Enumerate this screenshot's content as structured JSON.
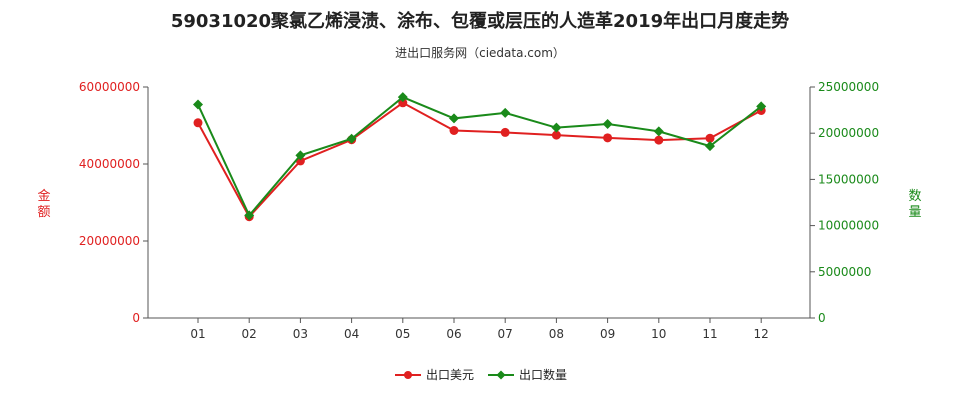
{
  "chart_data": {
    "type": "line",
    "title": "59031020聚氯乙烯浸渍、涂布、包覆或层压的人造革2019年出口月度走势",
    "subtitle": "进出口服务网（ciedata.com）",
    "xlabel": "",
    "categories": [
      "01",
      "02",
      "03",
      "04",
      "05",
      "06",
      "07",
      "08",
      "09",
      "10",
      "11",
      "12"
    ],
    "y_left": {
      "label": "金额",
      "lim": [
        0,
        60000000
      ],
      "ticks": [
        "0",
        "20000000",
        "40000000",
        "60000000"
      ]
    },
    "y_right": {
      "label": "数量",
      "lim": [
        0,
        25000000
      ],
      "ticks": [
        "0",
        "5000000",
        "10000000",
        "15000000",
        "20000000",
        "25000000"
      ]
    },
    "series": [
      {
        "name": "出口美元",
        "axis": "left",
        "color": "#e02020",
        "values": [
          50700000,
          26300000,
          40800000,
          46300000,
          55900000,
          48700000,
          48200000,
          47500000,
          46800000,
          46200000,
          46700000,
          53900000
        ]
      },
      {
        "name": "出口数量",
        "axis": "right",
        "color": "#1a8a1a",
        "values": [
          23100000,
          11100000,
          17600000,
          19400000,
          23900000,
          21600000,
          22200000,
          20600000,
          21000000,
          20200000,
          18600000,
          22900000
        ]
      }
    ],
    "grid": false,
    "legend_position": "bottom-center"
  }
}
